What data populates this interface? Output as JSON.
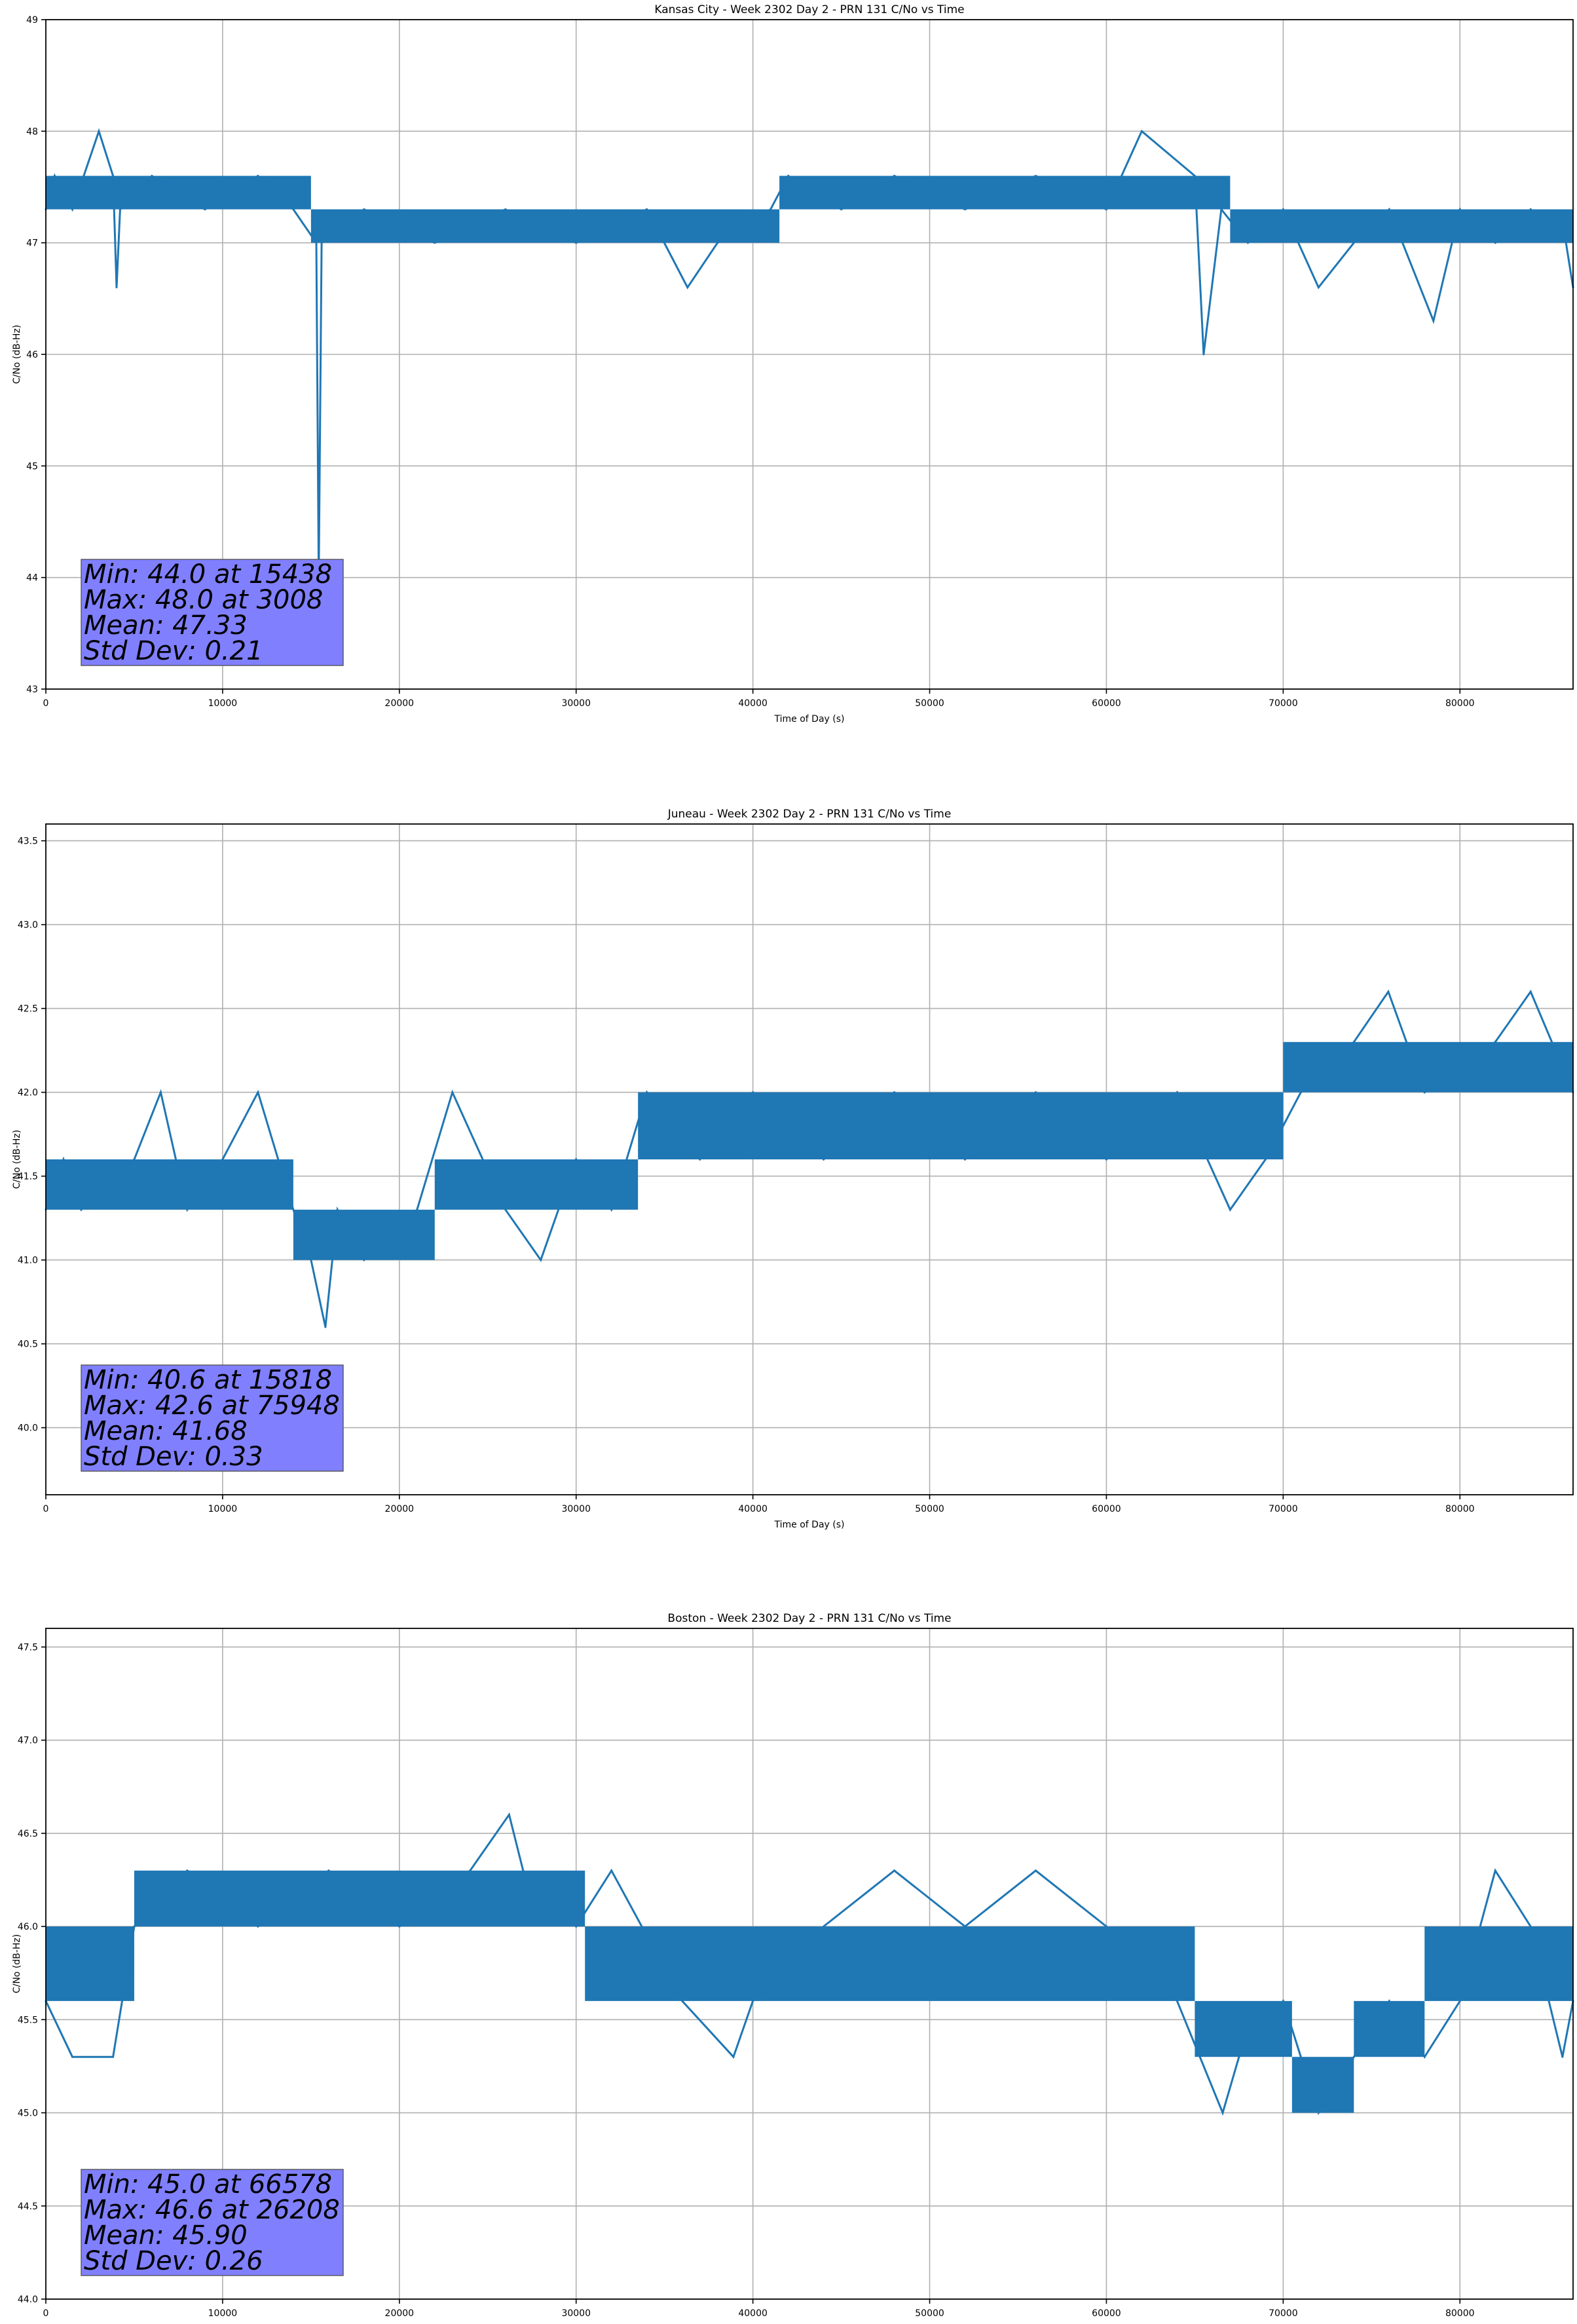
{
  "chart_data": [
    {
      "type": "line",
      "title": "Kansas City - Week 2302 Day 2 - PRN 131 C/No vs Time",
      "xlabel": "Time of Day (s)",
      "ylabel": "C/No (dB-Hz)",
      "xlim": [
        0,
        86400
      ],
      "ylim": [
        43,
        49
      ],
      "xticks": [
        0,
        10000,
        20000,
        30000,
        40000,
        50000,
        60000,
        70000,
        80000
      ],
      "yticks": [
        43,
        44,
        45,
        46,
        47,
        48,
        49
      ],
      "ytick_labels": [
        "43",
        "44",
        "45",
        "46",
        "47",
        "48",
        "49"
      ],
      "grid": true,
      "series": [
        {
          "color": "#1f77b4",
          "x": [
            0,
            500,
            1500,
            3000,
            3800,
            4000,
            4200,
            6000,
            9000,
            12000,
            14000,
            15300,
            15438,
            15600,
            18000,
            22000,
            26000,
            30000,
            34000,
            36300,
            38000,
            41000,
            42000,
            45000,
            48000,
            52000,
            56000,
            60000,
            62000,
            65000,
            65500,
            66500,
            68000,
            70000,
            72000,
            74000,
            76000,
            78500,
            80000,
            82000,
            84000,
            86000,
            86400
          ],
          "y": [
            47.3,
            47.6,
            47.3,
            48.0,
            47.6,
            46.6,
            47.3,
            47.6,
            47.3,
            47.6,
            47.3,
            47.0,
            44.0,
            47.0,
            47.3,
            47.0,
            47.3,
            47.0,
            47.3,
            46.6,
            47.0,
            47.3,
            47.6,
            47.3,
            47.6,
            47.3,
            47.6,
            47.3,
            48.0,
            47.6,
            46.0,
            47.3,
            47.0,
            47.3,
            46.6,
            47.0,
            47.3,
            46.3,
            47.3,
            47.0,
            47.3,
            47.0,
            46.6
          ],
          "band": [
            {
              "x0": 0,
              "x1": 15000,
              "y0": 47.3,
              "y1": 47.6
            },
            {
              "x0": 15000,
              "x1": 41500,
              "y0": 47.0,
              "y1": 47.3
            },
            {
              "x0": 41500,
              "x1": 67000,
              "y0": 47.3,
              "y1": 47.6
            },
            {
              "x0": 67000,
              "x1": 86400,
              "y0": 47.0,
              "y1": 47.3
            }
          ]
        }
      ],
      "stats": [
        "Min: 44.0 at 15438",
        "Max: 48.0 at 3008",
        "Mean: 47.33",
        "Std Dev: 0.21"
      ]
    },
    {
      "type": "line",
      "title": "Juneau - Week 2302 Day 2 - PRN 131 C/No vs Time",
      "xlabel": "Time of Day (s)",
      "ylabel": "C/No (dB-Hz)",
      "xlim": [
        0,
        86400
      ],
      "ylim": [
        39.6,
        43.6
      ],
      "xticks": [
        0,
        10000,
        20000,
        30000,
        40000,
        50000,
        60000,
        70000,
        80000
      ],
      "yticks": [
        40.0,
        40.5,
        41.0,
        41.5,
        42.0,
        42.5,
        43.0,
        43.5
      ],
      "ytick_labels": [
        "40.0",
        "40.5",
        "41.0",
        "41.5",
        "42.0",
        "42.5",
        "43.0",
        "43.5"
      ],
      "grid": true,
      "series": [
        {
          "color": "#1f77b4",
          "x": [
            0,
            1000,
            2000,
            5000,
            6500,
            8000,
            10000,
            12000,
            14000,
            15000,
            15818,
            16500,
            18000,
            21000,
            23000,
            26000,
            28000,
            30000,
            32000,
            34000,
            37000,
            40000,
            44000,
            48000,
            52000,
            56000,
            60000,
            64000,
            67000,
            69000,
            71000,
            74000,
            75948,
            78000,
            82000,
            84000,
            86400
          ],
          "y": [
            41.3,
            41.6,
            41.3,
            41.6,
            42.0,
            41.3,
            41.6,
            42.0,
            41.3,
            41.0,
            40.6,
            41.3,
            41.0,
            41.3,
            42.0,
            41.3,
            41.0,
            41.6,
            41.3,
            42.0,
            41.6,
            42.0,
            41.6,
            42.0,
            41.6,
            42.0,
            41.6,
            42.0,
            41.3,
            41.6,
            42.0,
            42.3,
            42.6,
            42.0,
            42.3,
            42.6,
            42.0
          ],
          "band": [
            {
              "x0": 0,
              "x1": 14000,
              "y0": 41.3,
              "y1": 41.6
            },
            {
              "x0": 14000,
              "x1": 22000,
              "y0": 41.0,
              "y1": 41.3
            },
            {
              "x0": 22000,
              "x1": 33500,
              "y0": 41.3,
              "y1": 41.6
            },
            {
              "x0": 33500,
              "x1": 70000,
              "y0": 41.6,
              "y1": 42.0
            },
            {
              "x0": 70000,
              "x1": 86400,
              "y0": 42.0,
              "y1": 42.3
            }
          ]
        }
      ],
      "stats": [
        "Min: 40.6 at 15818",
        "Max: 42.6 at 75948",
        "Mean: 41.68",
        "Std Dev: 0.33"
      ]
    },
    {
      "type": "line",
      "title": "Boston - Week 2302 Day 2 - PRN 131 C/No vs Time",
      "xlabel": "Time of Day (s)",
      "ylabel": "C/No (dB-Hz)",
      "xlim": [
        0,
        86400
      ],
      "ylim": [
        44.0,
        47.6
      ],
      "xticks": [
        0,
        10000,
        20000,
        30000,
        40000,
        50000,
        60000,
        70000,
        80000
      ],
      "yticks": [
        44.0,
        44.5,
        45.0,
        45.5,
        46.0,
        46.5,
        47.0,
        47.5
      ],
      "ytick_labels": [
        "44.0",
        "44.5",
        "45.0",
        "45.5",
        "46.0",
        "46.5",
        "47.0",
        "47.5"
      ],
      "grid": true,
      "series": [
        {
          "color": "#1f77b4",
          "x": [
            0,
            1500,
            3800,
            5000,
            8000,
            12000,
            16000,
            20000,
            24000,
            26208,
            27000,
            30000,
            32000,
            36000,
            38900,
            40000,
            44000,
            48000,
            52000,
            56000,
            60000,
            64000,
            66578,
            67500,
            70000,
            72000,
            74000,
            76000,
            78000,
            80000,
            82000,
            84000,
            85800,
            86400
          ],
          "y": [
            45.6,
            45.3,
            45.3,
            46.0,
            46.3,
            46.0,
            46.3,
            46.0,
            46.3,
            46.6,
            46.3,
            46.0,
            46.3,
            45.6,
            45.3,
            45.6,
            46.0,
            46.3,
            46.0,
            46.3,
            46.0,
            45.6,
            45.0,
            45.3,
            45.6,
            45.0,
            45.3,
            45.6,
            45.3,
            45.6,
            46.3,
            46.0,
            45.3,
            45.6
          ],
          "band": [
            {
              "x0": 0,
              "x1": 5000,
              "y0": 45.6,
              "y1": 46.0
            },
            {
              "x0": 5000,
              "x1": 30500,
              "y0": 46.0,
              "y1": 46.3
            },
            {
              "x0": 30500,
              "x1": 65000,
              "y0": 45.6,
              "y1": 46.0
            },
            {
              "x0": 65000,
              "x1": 70500,
              "y0": 45.3,
              "y1": 45.6
            },
            {
              "x0": 70500,
              "x1": 74000,
              "y0": 45.0,
              "y1": 45.3
            },
            {
              "x0": 74000,
              "x1": 78000,
              "y0": 45.3,
              "y1": 45.6
            },
            {
              "x0": 78000,
              "x1": 86400,
              "y0": 45.6,
              "y1": 46.0
            }
          ]
        }
      ],
      "stats": [
        "Min: 45.0 at 66578",
        "Max: 46.6 at 26208",
        "Mean: 45.90",
        "Std Dev: 0.26"
      ]
    }
  ]
}
